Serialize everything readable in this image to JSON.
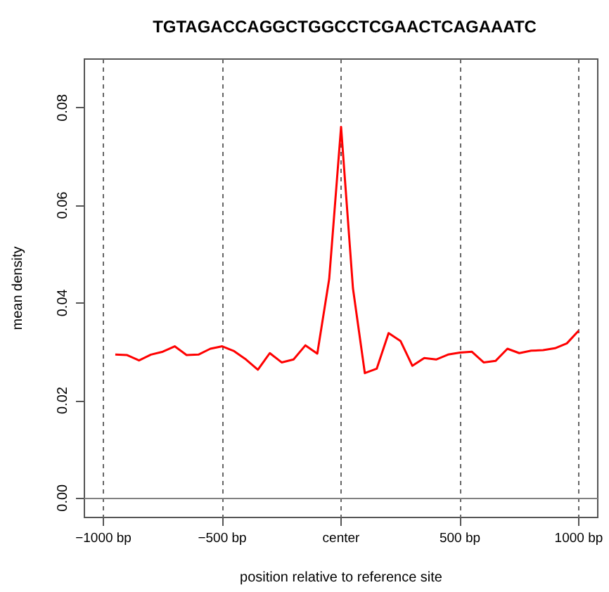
{
  "chart_data": {
    "type": "line",
    "title": "TGTAGACCAGGCTGGCCTCGAACTCAGAAATC",
    "xlabel": "position relative to reference site",
    "ylabel": "mean density",
    "x": [
      -950,
      -900,
      -850,
      -800,
      -750,
      -700,
      -650,
      -600,
      -550,
      -500,
      -450,
      -400,
      -350,
      -300,
      -250,
      -200,
      -150,
      -100,
      -50,
      0,
      50,
      100,
      150,
      200,
      250,
      300,
      350,
      400,
      450,
      500,
      550,
      600,
      650,
      700,
      750,
      800,
      850,
      900,
      950,
      1000
    ],
    "series": [
      {
        "color": "#ff0000",
        "values": [
          0.0294,
          0.0293,
          0.0282,
          0.0294,
          0.03,
          0.0311,
          0.0293,
          0.0294,
          0.0306,
          0.0311,
          0.0301,
          0.0284,
          0.0263,
          0.0297,
          0.0278,
          0.0284,
          0.0313,
          0.0296,
          0.0449,
          0.0761,
          0.043,
          0.0256,
          0.0265,
          0.0338,
          0.0322,
          0.0271,
          0.0287,
          0.0284,
          0.0294,
          0.0298,
          0.03,
          0.0278,
          0.0281,
          0.0306,
          0.0297,
          0.0302,
          0.0303,
          0.0307,
          0.0317,
          0.0343
        ]
      }
    ],
    "xlim": [
      -1080,
      1080
    ],
    "xticks": [
      {
        "value": -1000,
        "label": "−1000 bp"
      },
      {
        "value": -500,
        "label": "−500 bp"
      },
      {
        "value": 0,
        "label": "center"
      },
      {
        "value": 500,
        "label": "500 bp"
      },
      {
        "value": 1000,
        "label": "1000 bp"
      }
    ],
    "ylim": [
      -0.004,
      0.09
    ],
    "yticks": [
      {
        "value": 0,
        "label": "0.00"
      },
      {
        "value": 0.02,
        "label": "0.02"
      },
      {
        "value": 0.04,
        "label": "0.04"
      },
      {
        "value": 0.06,
        "label": "0.06"
      },
      {
        "value": 0.08,
        "label": "0.08"
      }
    ],
    "grid": "x",
    "ref_lines": [
      {
        "axis": "y",
        "value": 0,
        "color": "#808080",
        "line_style": "solid"
      }
    ],
    "marker": "none",
    "line_style": "solid"
  }
}
